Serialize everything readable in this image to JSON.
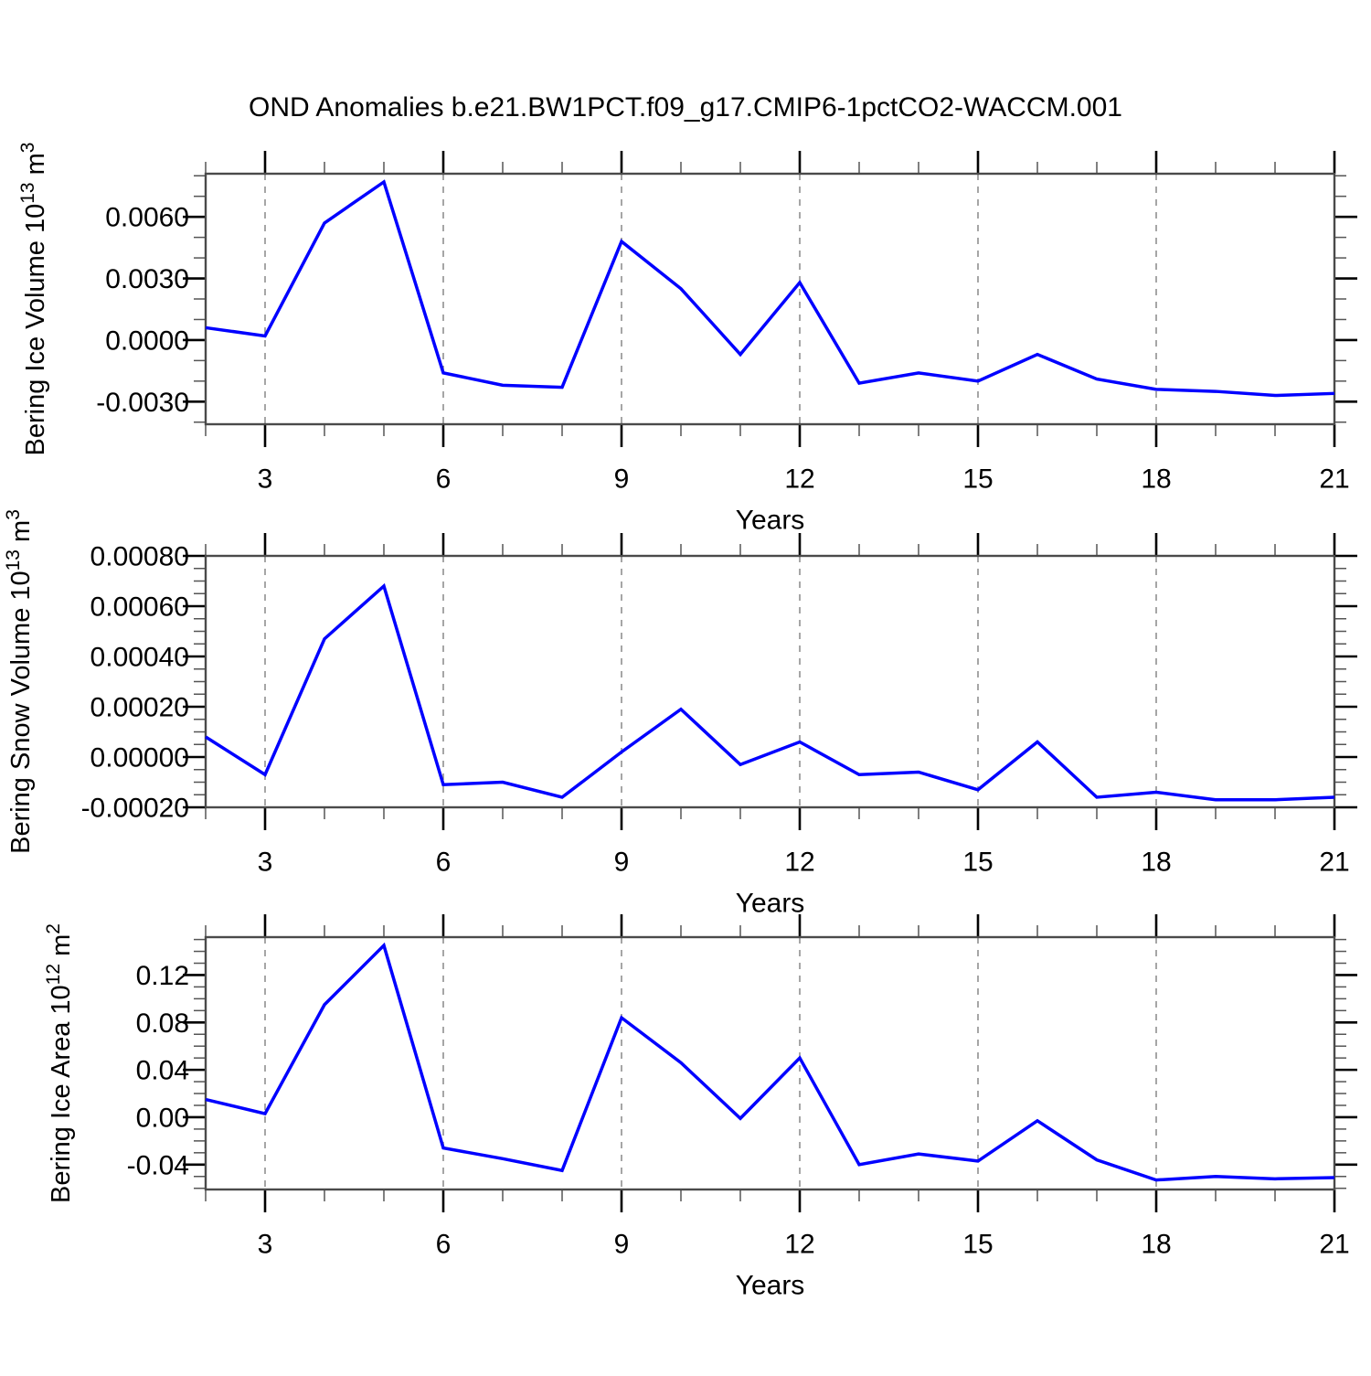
{
  "figure": {
    "title": "OND Anomalies b.e21.BW1PCT.f09_g17.CMIP6-1pctCO2-WACCM.001",
    "line_color": "#0000ff",
    "frame_color": "#4a4a4a",
    "grid_color": "#808080",
    "major_tick_color": "#000000",
    "minor_tick_color": "#555555"
  },
  "chart_data": [
    {
      "type": "line",
      "title": "Bering Ice Volume anomalies",
      "ylabel_plain": "Bering Ice Volume 10^13 m^3",
      "ylabel_parts": [
        {
          "t": "Bering Ice Volume 10"
        },
        {
          "t": "13",
          "sup": true
        },
        {
          "t": " m"
        },
        {
          "t": "3",
          "sup": true
        }
      ],
      "xlabel": "Years",
      "x": [
        2,
        3,
        4,
        5,
        6,
        7,
        8,
        9,
        10,
        11,
        12,
        13,
        14,
        15,
        16,
        17,
        18,
        19,
        20,
        21
      ],
      "values": [
        0.0006,
        0.0002,
        0.0057,
        0.0077,
        -0.0016,
        -0.0022,
        -0.0023,
        0.0048,
        0.0025,
        -0.0007,
        0.0028,
        -0.0021,
        -0.0016,
        -0.002,
        -0.0007,
        -0.0019,
        -0.0024,
        -0.0025,
        -0.0027,
        -0.0026
      ],
      "xlim": [
        2,
        21
      ],
      "ylim": [
        -0.0041,
        0.0081
      ],
      "x_major_ticks": [
        3,
        6,
        9,
        12,
        15,
        18,
        21
      ],
      "x_tick_labels": [
        "3",
        "6",
        "9",
        "12",
        "15",
        "18",
        "21"
      ],
      "x_minor_step": 1,
      "y_major_ticks": [
        -0.003,
        0.0,
        0.003,
        0.006
      ],
      "y_tick_labels": [
        "-0.0030",
        "0.0000",
        "0.0030",
        "0.0060"
      ],
      "y_minor_step": 0.001,
      "grid_years": [
        3,
        6,
        9,
        12,
        15,
        18
      ],
      "grid_on": "x-dashed",
      "legend": "none"
    },
    {
      "type": "line",
      "title": "Bering Snow Volume anomalies",
      "ylabel_plain": "Bering Snow Volume 10^13 m^3",
      "ylabel_parts": [
        {
          "t": "Bering Snow Volume 10"
        },
        {
          "t": "13",
          "sup": true
        },
        {
          "t": " m"
        },
        {
          "t": "3",
          "sup": true
        }
      ],
      "xlabel": "Years",
      "x": [
        2,
        3,
        4,
        5,
        6,
        7,
        8,
        9,
        10,
        11,
        12,
        13,
        14,
        15,
        16,
        17,
        18,
        19,
        20,
        21
      ],
      "values": [
        8e-05,
        -7e-05,
        0.00047,
        0.00068,
        -0.00011,
        -0.0001,
        -0.00016,
        2e-05,
        0.00019,
        -3e-05,
        6e-05,
        -7e-05,
        -6e-05,
        -0.00013,
        6e-05,
        -0.00016,
        -0.00014,
        -0.00017,
        -0.00017,
        -0.00016
      ],
      "xlim": [
        2,
        21
      ],
      "ylim": [
        -0.0002,
        0.0008
      ],
      "x_major_ticks": [
        3,
        6,
        9,
        12,
        15,
        18,
        21
      ],
      "x_tick_labels": [
        "3",
        "6",
        "9",
        "12",
        "15",
        "18",
        "21"
      ],
      "x_minor_step": 1,
      "y_major_ticks": [
        -0.0002,
        0.0,
        0.0002,
        0.0004,
        0.0006,
        0.0008
      ],
      "y_tick_labels": [
        "-0.00020",
        "0.00000",
        "0.00020",
        "0.00040",
        "0.00060",
        "0.00080"
      ],
      "y_minor_step": 5e-05,
      "grid_years": [
        3,
        6,
        9,
        12,
        15,
        18
      ],
      "grid_on": "x-dashed",
      "legend": "none"
    },
    {
      "type": "line",
      "title": "Bering Ice Area anomalies",
      "ylabel_plain": "Bering Ice Area 10^12 m^2",
      "ylabel_parts": [
        {
          "t": "Bering Ice Area 10"
        },
        {
          "t": "12",
          "sup": true
        },
        {
          "t": " m"
        },
        {
          "t": "2",
          "sup": true
        }
      ],
      "xlabel": "Years",
      "x": [
        2,
        3,
        4,
        5,
        6,
        7,
        8,
        9,
        10,
        11,
        12,
        13,
        14,
        15,
        16,
        17,
        18,
        19,
        20,
        21
      ],
      "values": [
        0.015,
        0.003,
        0.095,
        0.145,
        -0.026,
        -0.035,
        -0.045,
        0.084,
        0.046,
        -0.001,
        0.05,
        -0.04,
        -0.031,
        -0.037,
        -0.003,
        -0.036,
        -0.053,
        -0.05,
        -0.052,
        -0.051
      ],
      "xlim": [
        2,
        21
      ],
      "ylim": [
        -0.061,
        0.152
      ],
      "x_major_ticks": [
        3,
        6,
        9,
        12,
        15,
        18,
        21
      ],
      "x_tick_labels": [
        "3",
        "6",
        "9",
        "12",
        "15",
        "18",
        "21"
      ],
      "x_minor_step": 1,
      "y_major_ticks": [
        -0.04,
        0.0,
        0.04,
        0.08,
        0.12
      ],
      "y_tick_labels": [
        "-0.04",
        "0.00",
        "0.04",
        "0.08",
        "0.12"
      ],
      "y_minor_step": 0.01,
      "grid_years": [
        3,
        6,
        9,
        12,
        15,
        18
      ],
      "grid_on": "x-dashed",
      "legend": "none"
    }
  ]
}
